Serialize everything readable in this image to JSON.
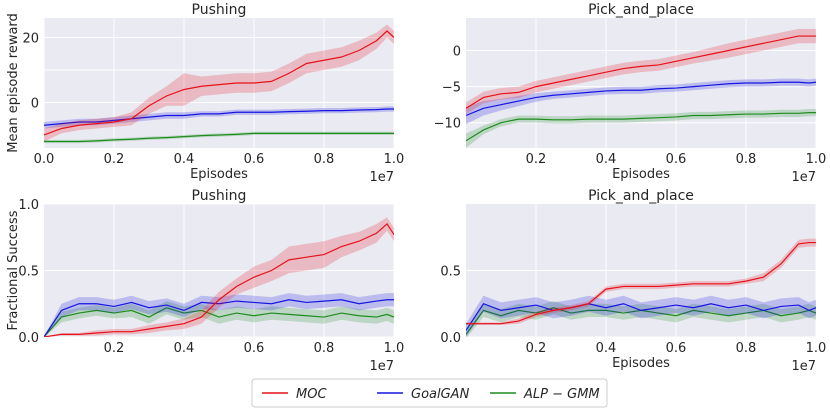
{
  "figure": {
    "legend": [
      {
        "label": "MOC",
        "color": "#e8111a"
      },
      {
        "label": "GoalGAN",
        "color": "#1616e0"
      },
      {
        "label": "ALP − GMM",
        "color": "#1e8c1e"
      }
    ]
  },
  "chart_data": [
    {
      "type": "line",
      "title": "Pushing",
      "xlabel": "Episodes",
      "ylabel": "Mean episode reward",
      "x_offset_label": "1e7",
      "xlim": [
        0.0,
        1.0
      ],
      "ylim": [
        -14,
        26
      ],
      "xticks": [
        0.0,
        0.2,
        0.4,
        0.6,
        0.8,
        1.0
      ],
      "xtick_labels": [
        "0.0",
        "0.2",
        "0.4",
        "0.6",
        "0.8",
        "1.0"
      ],
      "yticks": [
        0,
        20
      ],
      "ytick_labels": [
        "0",
        "20"
      ],
      "extra_yticks": [
        {
          "value": 10,
          "label": ""
        }
      ],
      "grid": true,
      "x": [
        0.0,
        0.05,
        0.1,
        0.15,
        0.2,
        0.25,
        0.3,
        0.35,
        0.4,
        0.45,
        0.5,
        0.55,
        0.6,
        0.65,
        0.7,
        0.75,
        0.8,
        0.85,
        0.9,
        0.95,
        0.98,
        1.0
      ],
      "series": [
        {
          "name": "MOC",
          "values": [
            -10,
            -8,
            -7,
            -6.5,
            -6,
            -5,
            -1,
            2,
            4,
            5,
            5.5,
            6,
            6,
            6.5,
            9,
            12,
            13,
            14,
            16,
            19,
            22,
            20
          ],
          "spread": [
            2,
            1.5,
            1.5,
            1.5,
            1.5,
            2,
            2.5,
            3,
            5,
            3,
            3,
            3,
            3,
            3,
            3,
            3,
            3,
            3,
            3,
            2.5,
            2,
            2
          ]
        },
        {
          "name": "GoalGAN",
          "values": [
            -7,
            -6.5,
            -6,
            -6,
            -5.5,
            -5,
            -4.5,
            -4,
            -4,
            -3.5,
            -3.5,
            -3,
            -3,
            -3,
            -2.8,
            -2.7,
            -2.5,
            -2.5,
            -2.3,
            -2.2,
            -2.0,
            -2.0
          ],
          "spread": [
            1,
            1,
            1,
            1,
            1,
            1,
            1,
            1,
            1,
            0.8,
            0.8,
            0.8,
            0.8,
            0.8,
            0.8,
            0.8,
            0.8,
            0.8,
            0.8,
            0.8,
            0.8,
            0.8
          ]
        },
        {
          "name": "ALP − GMM",
          "values": [
            -12,
            -12,
            -12,
            -11.8,
            -11.5,
            -11.3,
            -11,
            -10.8,
            -10.5,
            -10.2,
            -10,
            -9.8,
            -9.5,
            -9.5,
            -9.5,
            -9.5,
            -9.5,
            -9.5,
            -9.5,
            -9.5,
            -9.5,
            -9.5
          ],
          "spread": [
            0.5,
            0.5,
            0.5,
            0.5,
            0.5,
            0.5,
            0.5,
            0.5,
            0.5,
            0.5,
            0.5,
            0.5,
            0.5,
            0.5,
            0.5,
            0.5,
            0.5,
            0.5,
            0.5,
            0.5,
            0.5,
            0.5
          ]
        }
      ]
    },
    {
      "type": "line",
      "title": "Pick_and_place",
      "xlabel": "Episodes",
      "ylabel": "",
      "x_offset_label": "1e7",
      "xlim": [
        0.0,
        1.0
      ],
      "ylim": [
        -13.5,
        4.5
      ],
      "xticks": [
        0.2,
        0.4,
        0.6,
        0.8,
        1.0
      ],
      "xtick_labels": [
        "0.2",
        "0.4",
        "0.6",
        "0.8",
        "1.0"
      ],
      "yticks": [
        0,
        -5,
        -10
      ],
      "ytick_labels": [
        "0",
        "−5",
        "−10"
      ],
      "grid": true,
      "x": [
        0.0,
        0.05,
        0.1,
        0.15,
        0.2,
        0.25,
        0.3,
        0.35,
        0.4,
        0.45,
        0.5,
        0.55,
        0.6,
        0.65,
        0.7,
        0.75,
        0.8,
        0.85,
        0.9,
        0.95,
        0.98,
        1.0
      ],
      "series": [
        {
          "name": "MOC",
          "values": [
            -8,
            -6.5,
            -6,
            -5.8,
            -5,
            -4.5,
            -4,
            -3.5,
            -3,
            -2.5,
            -2.2,
            -2,
            -1.5,
            -1,
            -0.5,
            0,
            0.5,
            1,
            1.5,
            2,
            2,
            2
          ],
          "spread": [
            0.8,
            0.8,
            0.8,
            0.8,
            0.8,
            0.8,
            0.8,
            0.8,
            0.8,
            0.8,
            0.8,
            0.8,
            0.8,
            0.8,
            0.9,
            1,
            1,
            1,
            1,
            1,
            1,
            1
          ]
        },
        {
          "name": "GoalGAN",
          "values": [
            -9,
            -8,
            -7.5,
            -7,
            -6.5,
            -6.2,
            -6,
            -5.8,
            -5.6,
            -5.5,
            -5.5,
            -5.3,
            -5.2,
            -5,
            -4.8,
            -4.6,
            -4.5,
            -4.5,
            -4.4,
            -4.4,
            -4.5,
            -4.4
          ],
          "spread": [
            1.2,
            1,
            0.8,
            0.7,
            0.6,
            0.5,
            0.5,
            0.5,
            0.5,
            0.5,
            0.5,
            0.5,
            0.5,
            0.5,
            0.5,
            0.5,
            0.5,
            0.5,
            0.5,
            0.5,
            0.5,
            0.5
          ]
        },
        {
          "name": "ALP − GMM",
          "values": [
            -12.5,
            -11,
            -10,
            -9.5,
            -9.5,
            -9.6,
            -9.6,
            -9.5,
            -9.5,
            -9.5,
            -9.4,
            -9.3,
            -9.2,
            -9.0,
            -9.0,
            -8.9,
            -8.8,
            -8.8,
            -8.7,
            -8.7,
            -8.6,
            -8.6
          ],
          "spread": [
            1,
            0.6,
            0.5,
            0.5,
            0.5,
            0.5,
            0.5,
            0.5,
            0.5,
            0.5,
            0.5,
            0.5,
            0.5,
            0.5,
            0.5,
            0.5,
            0.5,
            0.5,
            0.5,
            0.5,
            0.5,
            0.5
          ]
        }
      ]
    },
    {
      "type": "line",
      "title": "Pushing",
      "xlabel": "",
      "ylabel": "Fractional Success",
      "x_offset_label": "1e7",
      "xlim": [
        0.0,
        1.0
      ],
      "ylim": [
        0.0,
        1.0
      ],
      "xticks": [
        0.2,
        0.4,
        0.6,
        0.8,
        1.0
      ],
      "xtick_labels": [
        "0.2",
        "0.4",
        "0.6",
        "0.8",
        "1.0"
      ],
      "yticks": [
        0.0,
        0.5,
        1.0
      ],
      "ytick_labels": [
        "0.0",
        "0.5",
        "1.0"
      ],
      "grid": true,
      "x": [
        0.0,
        0.05,
        0.1,
        0.15,
        0.2,
        0.25,
        0.3,
        0.35,
        0.4,
        0.45,
        0.5,
        0.55,
        0.6,
        0.65,
        0.7,
        0.75,
        0.8,
        0.85,
        0.9,
        0.95,
        0.98,
        1.0
      ],
      "series": [
        {
          "name": "MOC",
          "values": [
            0,
            0.02,
            0.02,
            0.03,
            0.04,
            0.04,
            0.06,
            0.08,
            0.1,
            0.15,
            0.28,
            0.38,
            0.45,
            0.5,
            0.58,
            0.6,
            0.62,
            0.68,
            0.72,
            0.78,
            0.85,
            0.77
          ],
          "spread": [
            0,
            0.01,
            0.01,
            0.02,
            0.02,
            0.02,
            0.03,
            0.03,
            0.04,
            0.05,
            0.06,
            0.06,
            0.08,
            0.08,
            0.1,
            0.1,
            0.1,
            0.08,
            0.07,
            0.07,
            0.05,
            0.05
          ]
        },
        {
          "name": "GoalGAN",
          "values": [
            0,
            0.2,
            0.25,
            0.25,
            0.23,
            0.26,
            0.22,
            0.24,
            0.2,
            0.26,
            0.25,
            0.27,
            0.26,
            0.25,
            0.28,
            0.26,
            0.27,
            0.28,
            0.25,
            0.27,
            0.28,
            0.28
          ],
          "spread": [
            0,
            0.05,
            0.05,
            0.05,
            0.05,
            0.05,
            0.05,
            0.05,
            0.05,
            0.05,
            0.05,
            0.05,
            0.05,
            0.05,
            0.05,
            0.05,
            0.05,
            0.05,
            0.05,
            0.05,
            0.05,
            0.05
          ]
        },
        {
          "name": "ALP − GMM",
          "values": [
            0,
            0.15,
            0.18,
            0.2,
            0.18,
            0.2,
            0.15,
            0.22,
            0.18,
            0.2,
            0.15,
            0.18,
            0.16,
            0.18,
            0.17,
            0.16,
            0.15,
            0.18,
            0.16,
            0.15,
            0.17,
            0.15
          ],
          "spread": [
            0,
            0.04,
            0.04,
            0.04,
            0.04,
            0.05,
            0.05,
            0.05,
            0.05,
            0.05,
            0.05,
            0.05,
            0.05,
            0.05,
            0.05,
            0.05,
            0.05,
            0.05,
            0.05,
            0.05,
            0.05,
            0.05
          ]
        }
      ]
    },
    {
      "type": "line",
      "title": "Pick_and_place",
      "xlabel": "Episodes",
      "ylabel": "",
      "x_offset_label": "1e7",
      "xlim": [
        0.0,
        1.0
      ],
      "ylim": [
        0.0,
        1.0
      ],
      "xticks": [
        0.2,
        0.4,
        0.6,
        0.8,
        1.0
      ],
      "xtick_labels": [
        "0.2",
        "0.4",
        "0.6",
        "0.8",
        "1.0"
      ],
      "yticks": [
        0.0,
        0.5
      ],
      "ytick_labels": [
        "0.0",
        "0.5"
      ],
      "grid": true,
      "x": [
        0.0,
        0.05,
        0.1,
        0.15,
        0.2,
        0.25,
        0.3,
        0.35,
        0.4,
        0.45,
        0.5,
        0.55,
        0.6,
        0.65,
        0.7,
        0.75,
        0.8,
        0.85,
        0.9,
        0.95,
        0.98,
        1.0
      ],
      "series": [
        {
          "name": "MOC",
          "values": [
            0.1,
            0.1,
            0.1,
            0.12,
            0.17,
            0.2,
            0.22,
            0.25,
            0.36,
            0.38,
            0.38,
            0.38,
            0.39,
            0.4,
            0.4,
            0.4,
            0.42,
            0.45,
            0.55,
            0.7,
            0.71,
            0.71
          ],
          "spread": [
            0.01,
            0.01,
            0.01,
            0.02,
            0.02,
            0.02,
            0.02,
            0.02,
            0.02,
            0.02,
            0.02,
            0.02,
            0.02,
            0.02,
            0.02,
            0.02,
            0.02,
            0.03,
            0.03,
            0.03,
            0.03,
            0.03
          ]
        },
        {
          "name": "GoalGAN",
          "values": [
            0.05,
            0.25,
            0.2,
            0.22,
            0.24,
            0.2,
            0.22,
            0.25,
            0.22,
            0.25,
            0.2,
            0.22,
            0.24,
            0.22,
            0.25,
            0.22,
            0.24,
            0.2,
            0.23,
            0.24,
            0.2,
            0.22
          ],
          "spread": [
            0.05,
            0.06,
            0.06,
            0.06,
            0.06,
            0.06,
            0.06,
            0.06,
            0.06,
            0.06,
            0.06,
            0.06,
            0.06,
            0.06,
            0.06,
            0.06,
            0.06,
            0.06,
            0.06,
            0.06,
            0.06,
            0.06
          ]
        },
        {
          "name": "ALP − GMM",
          "values": [
            0.02,
            0.2,
            0.16,
            0.2,
            0.18,
            0.22,
            0.18,
            0.2,
            0.2,
            0.18,
            0.2,
            0.18,
            0.16,
            0.2,
            0.18,
            0.16,
            0.18,
            0.2,
            0.16,
            0.18,
            0.2,
            0.18
          ],
          "spread": [
            0.03,
            0.05,
            0.05,
            0.05,
            0.05,
            0.05,
            0.05,
            0.05,
            0.05,
            0.05,
            0.05,
            0.05,
            0.05,
            0.05,
            0.05,
            0.05,
            0.05,
            0.05,
            0.05,
            0.05,
            0.05,
            0.05
          ]
        }
      ]
    }
  ]
}
